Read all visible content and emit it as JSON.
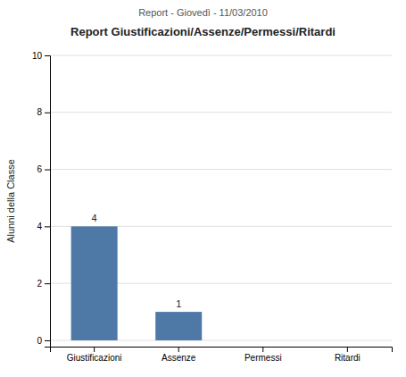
{
  "chart_data": {
    "type": "bar",
    "title": "Report Giustificazioni/Assenze/Permessi/Ritardi",
    "subtitle": "Report - Giovedì - 11/03/2010",
    "ylabel": "Alunni della Classe",
    "categories": [
      "Giustificazioni",
      "Assenze",
      "Permessi",
      "Ritardi"
    ],
    "values": [
      4,
      1,
      0,
      0
    ],
    "ylim": [
      -0.22,
      10
    ],
    "yticks": [
      0,
      2,
      4,
      6,
      8,
      10
    ],
    "grid": true,
    "data_labels": true
  }
}
